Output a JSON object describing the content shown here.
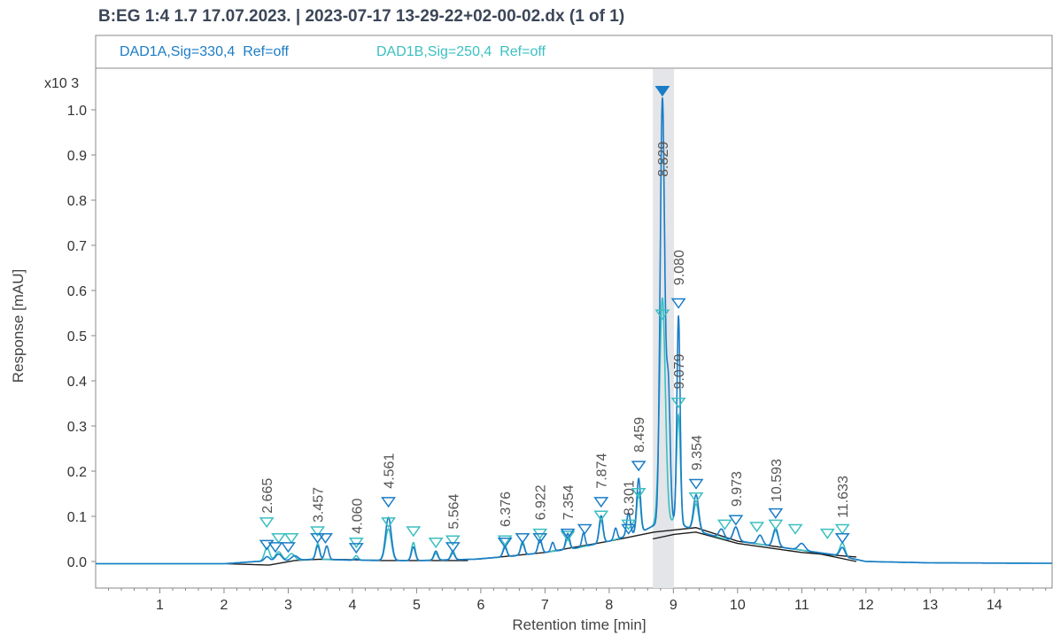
{
  "title": "B:EG 1:4 1.7 17.07.2023. | 2023-07-17 13-29-22+02-00-02.dx (1 of 1)",
  "chart_data": {
    "type": "line",
    "xlabel": "Retention time [min]",
    "ylabel": "Response [mAU]",
    "y_multiplier": "x10 3",
    "xlim": [
      0,
      14.9
    ],
    "ylim": [
      -0.05,
      1.05
    ],
    "xticks": [
      1,
      2,
      3,
      4,
      5,
      6,
      7,
      8,
      9,
      10,
      11,
      12,
      13,
      14
    ],
    "yticks": [
      "0.0",
      "0.1",
      "0.2",
      "0.3",
      "0.4",
      "0.5",
      "0.6",
      "0.7",
      "0.8",
      "0.9",
      "1.0"
    ],
    "highlight_range": [
      8.68,
      9.01
    ],
    "series": [
      {
        "name": "DAD1A,Sig=330,4  Ref=off",
        "color": "#1a7cc6"
      },
      {
        "name": "DAD1B,Sig=250,4  Ref=off",
        "color": "#3cbfc0"
      }
    ],
    "signal_a": {
      "baseline": [
        [
          0,
          -0.005
        ],
        [
          2.0,
          -0.005
        ],
        [
          2.5,
          0.0
        ],
        [
          3.0,
          0.002
        ],
        [
          3.4,
          0.005
        ],
        [
          4.0,
          0.003
        ],
        [
          5.0,
          0.002
        ],
        [
          5.9,
          0.005
        ],
        [
          6.5,
          0.012
        ],
        [
          7.0,
          0.02
        ],
        [
          7.5,
          0.03
        ],
        [
          8.0,
          0.045
        ],
        [
          8.5,
          0.065
        ],
        [
          8.7,
          0.08
        ],
        [
          9.0,
          0.09
        ],
        [
          9.3,
          0.07
        ],
        [
          9.8,
          0.05
        ],
        [
          10.5,
          0.035
        ],
        [
          11.5,
          0.015
        ],
        [
          12.0,
          0.0
        ],
        [
          13.0,
          -0.003
        ],
        [
          14.9,
          -0.004
        ]
      ],
      "peaks": [
        [
          2.67,
          0.01,
          0.04
        ],
        [
          2.85,
          0.015,
          0.05
        ],
        [
          3.1,
          0.01,
          0.05
        ],
        [
          3.46,
          0.03,
          0.03
        ],
        [
          3.6,
          0.03,
          0.03
        ],
        [
          4.06,
          0.003,
          0.03
        ],
        [
          4.561,
          0.095,
          0.045
        ],
        [
          4.95,
          0.03,
          0.03
        ],
        [
          5.3,
          0.02,
          0.03
        ],
        [
          5.564,
          0.015,
          0.03
        ],
        [
          6.376,
          0.02,
          0.03
        ],
        [
          6.65,
          0.025,
          0.03
        ],
        [
          6.922,
          0.03,
          0.03
        ],
        [
          7.12,
          0.02,
          0.025
        ],
        [
          7.354,
          0.035,
          0.03
        ],
        [
          7.6,
          0.03,
          0.025
        ],
        [
          7.874,
          0.06,
          0.03
        ],
        [
          8.1,
          0.025,
          0.025
        ],
        [
          8.301,
          0.05,
          0.03
        ],
        [
          8.459,
          0.12,
          0.03
        ],
        [
          8.829,
          0.94,
          0.035
        ],
        [
          8.92,
          0.3,
          0.03
        ],
        [
          9.08,
          0.46,
          0.025
        ],
        [
          9.354,
          0.08,
          0.04
        ],
        [
          9.75,
          0.02,
          0.04
        ],
        [
          9.973,
          0.03,
          0.04
        ],
        [
          10.35,
          0.02,
          0.04
        ],
        [
          10.593,
          0.04,
          0.04
        ],
        [
          11.0,
          0.015,
          0.05
        ],
        [
          11.633,
          0.02,
          0.04
        ]
      ]
    },
    "signal_b": {
      "baseline": [
        [
          0,
          -0.005
        ],
        [
          2.0,
          -0.005
        ],
        [
          2.5,
          0.0
        ],
        [
          3.0,
          0.002
        ],
        [
          3.4,
          0.005
        ],
        [
          4.0,
          0.003
        ],
        [
          5.0,
          0.002
        ],
        [
          5.9,
          0.005
        ],
        [
          6.5,
          0.012
        ],
        [
          7.0,
          0.02
        ],
        [
          7.5,
          0.03
        ],
        [
          8.0,
          0.045
        ],
        [
          8.5,
          0.065
        ],
        [
          8.7,
          0.08
        ],
        [
          9.0,
          0.09
        ],
        [
          9.3,
          0.07
        ],
        [
          9.8,
          0.05
        ],
        [
          10.5,
          0.035
        ],
        [
          11.5,
          0.015
        ],
        [
          12.0,
          0.0
        ],
        [
          13.0,
          -0.003
        ],
        [
          14.9,
          -0.004
        ]
      ],
      "peaks": [
        [
          2.67,
          0.03,
          0.04
        ],
        [
          2.85,
          0.02,
          0.05
        ],
        [
          3.05,
          0.015,
          0.05
        ],
        [
          3.46,
          0.035,
          0.03
        ],
        [
          4.06,
          0.01,
          0.03
        ],
        [
          4.561,
          0.07,
          0.045
        ],
        [
          4.95,
          0.04,
          0.03
        ],
        [
          5.3,
          0.015,
          0.03
        ],
        [
          5.564,
          0.02,
          0.03
        ],
        [
          6.376,
          0.025,
          0.03
        ],
        [
          6.65,
          0.03,
          0.03
        ],
        [
          6.922,
          0.03,
          0.03
        ],
        [
          7.354,
          0.025,
          0.03
        ],
        [
          7.874,
          0.05,
          0.03
        ],
        [
          8.301,
          0.05,
          0.03
        ],
        [
          8.459,
          0.09,
          0.03
        ],
        [
          8.829,
          0.5,
          0.045
        ],
        [
          9.079,
          0.24,
          0.03
        ],
        [
          9.354,
          0.06,
          0.04
        ],
        [
          9.973,
          0.03,
          0.04
        ],
        [
          10.593,
          0.035,
          0.04
        ],
        [
          11.633,
          0.03,
          0.04
        ]
      ]
    },
    "baselines": [
      [
        [
          2.05,
          -0.005
        ],
        [
          2.7,
          -0.008
        ],
        [
          3.1,
          0.002
        ],
        [
          3.5,
          0.005
        ],
        [
          4.0,
          0.004
        ],
        [
          4.3,
          0.002
        ],
        [
          5.0,
          0.002
        ],
        [
          5.8,
          0.002
        ]
      ],
      [
        [
          5.95,
          0.005
        ],
        [
          7.0,
          0.02
        ],
        [
          8.0,
          0.045
        ],
        [
          8.7,
          0.065
        ],
        [
          9.35,
          0.075
        ],
        [
          10.0,
          0.045
        ],
        [
          11.0,
          0.025
        ],
        [
          11.85,
          0.0
        ]
      ],
      [
        [
          8.68,
          0.05
        ],
        [
          9.01,
          0.06
        ],
        [
          9.35,
          0.065
        ],
        [
          10.0,
          0.04
        ],
        [
          11.0,
          0.02
        ],
        [
          11.85,
          0.01
        ]
      ]
    ],
    "markers_a": [
      [
        2.665,
        0.015
      ],
      [
        2.8,
        0.01
      ],
      [
        3.0,
        0.01
      ],
      [
        3.457,
        0.03
      ],
      [
        3.58,
        0.03
      ],
      [
        4.06,
        0.008
      ],
      [
        4.561,
        0.11
      ],
      [
        5.564,
        0.01
      ],
      [
        6.376,
        0.02
      ],
      [
        6.65,
        0.03
      ],
      [
        6.922,
        0.03
      ],
      [
        7.354,
        0.04
      ],
      [
        7.62,
        0.05
      ],
      [
        7.874,
        0.11
      ],
      [
        8.301,
        0.05
      ],
      [
        8.459,
        0.19
      ],
      [
        8.829,
        1.02
      ],
      [
        9.08,
        0.55
      ],
      [
        9.354,
        0.15
      ],
      [
        9.973,
        0.07
      ],
      [
        10.593,
        0.085
      ],
      [
        11.633,
        0.03
      ]
    ],
    "markers_b": [
      [
        2.665,
        0.065
      ],
      [
        2.85,
        0.03
      ],
      [
        3.05,
        0.03
      ],
      [
        3.457,
        0.045
      ],
      [
        4.06,
        0.02
      ],
      [
        4.561,
        0.065
      ],
      [
        4.95,
        0.045
      ],
      [
        5.3,
        0.02
      ],
      [
        5.564,
        0.025
      ],
      [
        6.376,
        0.025
      ],
      [
        6.922,
        0.04
      ],
      [
        7.354,
        0.035
      ],
      [
        7.874,
        0.08
      ],
      [
        8.301,
        0.06
      ],
      [
        8.459,
        0.13
      ],
      [
        8.829,
        0.525
      ],
      [
        9.079,
        0.33
      ],
      [
        9.354,
        0.12
      ],
      [
        9.8,
        0.06
      ],
      [
        10.3,
        0.055
      ],
      [
        10.593,
        0.06
      ],
      [
        10.9,
        0.05
      ],
      [
        11.4,
        0.04
      ],
      [
        11.633,
        0.05
      ]
    ],
    "peak_labels": [
      {
        "text": "2.665",
        "x": 2.665,
        "y": 0.075
      },
      {
        "text": "3.457",
        "x": 3.457,
        "y": 0.055
      },
      {
        "text": "4.060",
        "x": 4.06,
        "y": 0.03
      },
      {
        "text": "4.561",
        "x": 4.561,
        "y": 0.13
      },
      {
        "text": "5.564",
        "x": 5.564,
        "y": 0.04
      },
      {
        "text": "6.376",
        "x": 6.376,
        "y": 0.045
      },
      {
        "text": "6.922",
        "x": 6.922,
        "y": 0.06
      },
      {
        "text": "7.354",
        "x": 7.354,
        "y": 0.06
      },
      {
        "text": "7.874",
        "x": 7.874,
        "y": 0.13
      },
      {
        "text": "8.301",
        "x": 8.301,
        "y": 0.07
      },
      {
        "text": "8.459",
        "x": 8.459,
        "y": 0.21
      },
      {
        "text": "8.829",
        "x": 8.829,
        "y": 0.82
      },
      {
        "text": "9.080",
        "x": 9.08,
        "y": 0.58
      },
      {
        "text": "9.079",
        "x": 9.079,
        "y": 0.35
      },
      {
        "text": "9.354",
        "x": 9.354,
        "y": 0.17
      },
      {
        "text": "9.973",
        "x": 9.973,
        "y": 0.09
      },
      {
        "text": "10.593",
        "x": 10.593,
        "y": 0.1
      },
      {
        "text": "11.633",
        "x": 11.633,
        "y": 0.065
      }
    ]
  }
}
